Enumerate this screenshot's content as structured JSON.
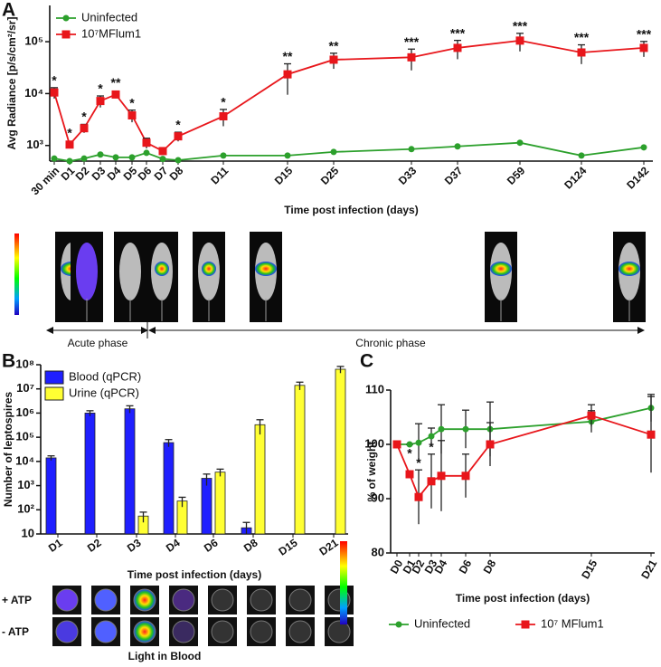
{
  "chart_data": [
    {
      "type": "line",
      "panel": "A",
      "y_label": "Avg Radiance [p/s/cm²/sr]",
      "x_label": "Time post infection (days)",
      "categories": [
        "30 min",
        "D1",
        "D2",
        "D3",
        "D4",
        "D5",
        "D6",
        "D7",
        "D8",
        "D11",
        "D15",
        "D25",
        "D33",
        "D37",
        "D59",
        "D124",
        "D142"
      ],
      "log_y": true,
      "ylim": [
        500,
        500000
      ],
      "yticks": [
        {
          "value": 1000,
          "label": "10³"
        },
        {
          "value": 10000,
          "label": "10⁴"
        },
        {
          "value": 100000,
          "label": "10⁵"
        }
      ],
      "legend": "upper-left",
      "series": [
        {
          "name": "Uninfected",
          "color": "#2ca02c",
          "marker": "circle",
          "values": [
            560,
            500,
            560,
            670,
            590,
            590,
            720,
            550,
            520,
            640,
            640,
            750,
            850,
            960,
            1130,
            640,
            920
          ]
        },
        {
          "name": "10⁷MFlum1",
          "color": "#e8161b",
          "marker": "square",
          "values": [
            10500,
            1040,
            2150,
            7200,
            9600,
            3800,
            1130,
            780,
            1500,
            3650,
            23500,
            45000,
            50000,
            76000,
            105000,
            62000,
            76000
          ],
          "errors": [
            2500,
            150,
            400,
            1800,
            1500,
            1000,
            250,
            100,
            300,
            1300,
            14000,
            15000,
            22000,
            30000,
            40000,
            25000,
            25000
          ],
          "significance": [
            "*",
            "*",
            "*",
            "*",
            "**",
            "*",
            null,
            null,
            "*",
            "*",
            "**",
            "**",
            "***",
            "***",
            "***",
            "***",
            "***"
          ]
        }
      ],
      "phases": [
        "Acute phase",
        "Chronic phase"
      ]
    },
    {
      "type": "bar",
      "panel": "B",
      "y_label": "Number of leptospires",
      "x_label": "Time post infection (days)",
      "categories": [
        "D1",
        "D2",
        "D3",
        "D4",
        "D6",
        "D8",
        "D15",
        "D21"
      ],
      "log_y": true,
      "ylim": [
        10,
        100000000
      ],
      "yticks": [
        10,
        {
          "value": 100,
          "label": "10²"
        },
        {
          "value": 1000,
          "label": "10³"
        },
        {
          "value": 10000,
          "label": "10⁴"
        },
        {
          "value": 100000,
          "label": "10⁵"
        },
        {
          "value": 1000000,
          "label": "10⁶"
        },
        {
          "value": 10000000,
          "label": "10⁷"
        },
        {
          "value": 100000000,
          "label": "10⁸"
        }
      ],
      "legend": "upper-left",
      "series": [
        {
          "name": "Blood (qPCR)",
          "color": "#1f1fff",
          "values": [
            14000,
            1000000,
            1500000,
            60000,
            2000,
            18,
            null,
            null
          ],
          "errors": [
            3000,
            250000,
            500000,
            20000,
            1000,
            12,
            null,
            null
          ]
        },
        {
          "name": "Urine (qPCR)",
          "color": "#ffff33",
          "values": [
            null,
            null,
            55,
            230,
            3600,
            330000,
            14000000,
            65000000
          ],
          "errors": [
            null,
            null,
            25,
            100,
            1200,
            200000,
            5000000,
            20000000
          ]
        }
      ],
      "blood_assay": {
        "rows": [
          "+ ATP",
          "- ATP"
        ],
        "caption": "Light in Blood"
      }
    },
    {
      "type": "line",
      "panel": "C",
      "y_label": "% of weight",
      "x_label": "Time post infection (days)",
      "categories": [
        "D0",
        "D1",
        "D2",
        "D3",
        "D4",
        "D6",
        "D8",
        "D15",
        "D21"
      ],
      "log_y": false,
      "ylim": [
        80,
        110
      ],
      "yticks": [
        80,
        90,
        100,
        110
      ],
      "legend": "bottom",
      "series": [
        {
          "name": "Uninfected",
          "color": "#2ca02c",
          "marker": "circle",
          "values": [
            100,
            100,
            100.3,
            101.5,
            102.8,
            102.8,
            102.8,
            104.2,
            106.7
          ],
          "errors": [
            0,
            0,
            3.5,
            1.5,
            4.5,
            3.5,
            5,
            2,
            2.5
          ]
        },
        {
          "name": "10⁷ MFlum1",
          "color": "#e8161b",
          "marker": "square",
          "values": [
            100,
            94.5,
            90.3,
            93.2,
            94.2,
            94.2,
            100,
            105.3,
            101.8
          ],
          "errors": [
            0,
            0,
            5,
            5,
            6.5,
            4,
            4,
            2,
            7
          ],
          "significance": [
            null,
            "*",
            "*",
            "*",
            null,
            null,
            null,
            null,
            null
          ]
        }
      ]
    }
  ]
}
